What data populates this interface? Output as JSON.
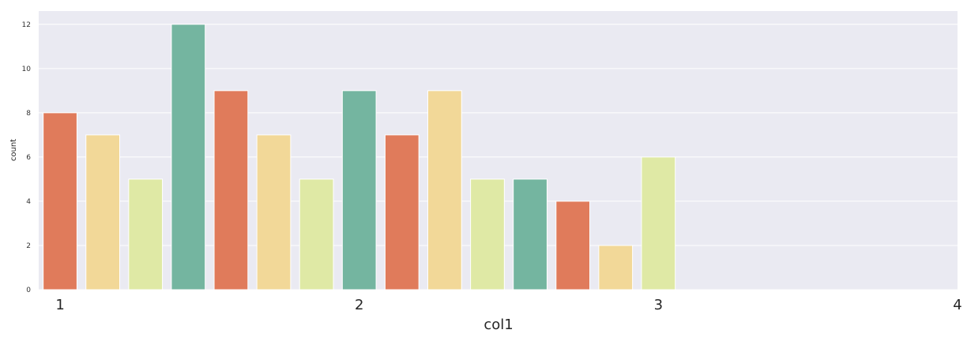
{
  "chart_data": {
    "type": "bar",
    "title": "",
    "xlabel": "col1",
    "ylabel": "count",
    "x_tick_labels": [
      "1",
      "2",
      "3",
      "4"
    ],
    "x_tick_positions": [
      0,
      7,
      14,
      21
    ],
    "y_ticks": [
      0,
      2,
      4,
      6,
      8,
      10,
      12
    ],
    "ylim": [
      0,
      12.6
    ],
    "xlim": [
      -0.5,
      21.0
    ],
    "grid": true,
    "background": "#eaeaf2",
    "palette": [
      "#e07b5b",
      "#f2d898",
      "#dfe9a5",
      "#74b5a0"
    ],
    "values": [
      8,
      7,
      5,
      12,
      9,
      7,
      5,
      9,
      7,
      9,
      5,
      5,
      4,
      2,
      6
    ]
  }
}
